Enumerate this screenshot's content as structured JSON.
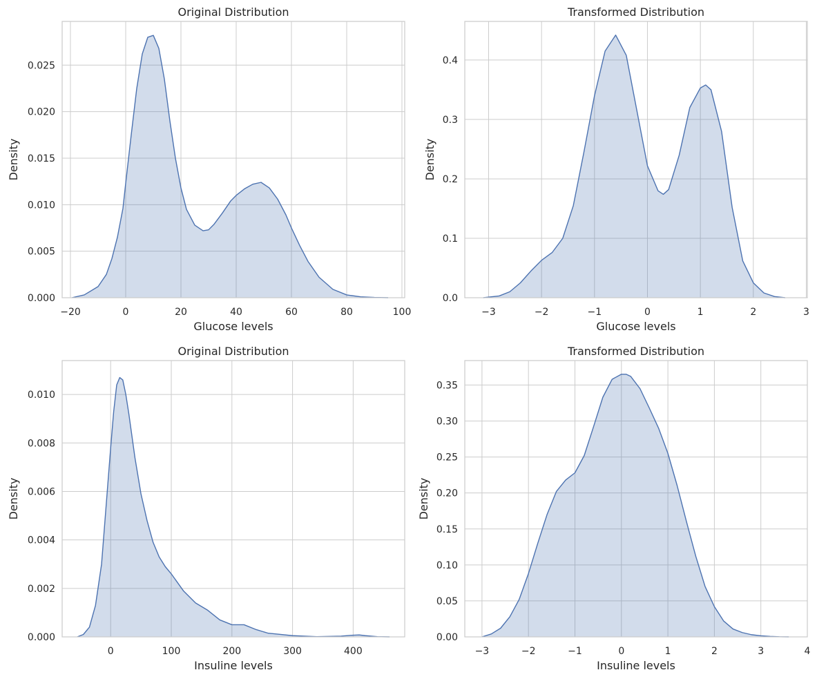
{
  "chart_data": [
    {
      "type": "area",
      "title": "Original Distribution",
      "xlabel": "Glucose levels",
      "ylabel": "Density",
      "xlim": [
        -23,
        101
      ],
      "ylim": [
        0,
        0.0297
      ],
      "xticks": [
        -20,
        0,
        20,
        40,
        60,
        80,
        100
      ],
      "xtick_labels": [
        "−20",
        "0",
        "20",
        "40",
        "60",
        "80",
        "100"
      ],
      "yticks": [
        0,
        0.005,
        0.01,
        0.015,
        0.02,
        0.025
      ],
      "ytick_labels": [
        "0.000",
        "0.005",
        "0.010",
        "0.015",
        "0.020",
        "0.025"
      ],
      "grid": true,
      "series": [
        {
          "x": [
            -19.5,
            -15,
            -10,
            -7,
            -5,
            -3,
            -1,
            0,
            2,
            4,
            6,
            8,
            10,
            12,
            14,
            16,
            18,
            20,
            22,
            25,
            28,
            30,
            32,
            35,
            38,
            40,
            43,
            46,
            49,
            52,
            55,
            58,
            60,
            63,
            66,
            70,
            75,
            80,
            85,
            90,
            95
          ],
          "y": [
            0,
            0.0003,
            0.0012,
            0.0025,
            0.0042,
            0.0065,
            0.0096,
            0.0123,
            0.0175,
            0.0225,
            0.0262,
            0.028,
            0.0282,
            0.0268,
            0.0235,
            0.019,
            0.015,
            0.0118,
            0.0095,
            0.0078,
            0.0072,
            0.0073,
            0.0079,
            0.0091,
            0.0104,
            0.011,
            0.0117,
            0.0122,
            0.0124,
            0.0118,
            0.0106,
            0.0089,
            0.0075,
            0.0056,
            0.0039,
            0.0022,
            0.0009,
            0.0003,
            0.0001,
            3e-05,
            0
          ]
        }
      ]
    },
    {
      "type": "area",
      "title": "Transformed Distribution",
      "xlabel": "Glucose levels",
      "ylabel": "Density",
      "xlim": [
        -3.45,
        3.02
      ],
      "ylim": [
        0,
        0.465
      ],
      "xticks": [
        -3,
        -2,
        -1,
        0,
        1,
        2,
        3
      ],
      "xtick_labels": [
        "−3",
        "−2",
        "−1",
        "0",
        "1",
        "2",
        "3"
      ],
      "yticks": [
        0,
        0.1,
        0.2,
        0.3,
        0.4
      ],
      "ytick_labels": [
        "0.0",
        "0.1",
        "0.2",
        "0.3",
        "0.4"
      ],
      "grid": true,
      "series": [
        {
          "x": [
            -3.1,
            -2.8,
            -2.6,
            -2.4,
            -2.2,
            -2.0,
            -1.8,
            -1.6,
            -1.4,
            -1.2,
            -1.0,
            -0.8,
            -0.6,
            -0.4,
            -0.2,
            0.0,
            0.2,
            0.3,
            0.4,
            0.6,
            0.8,
            1.0,
            1.1,
            1.2,
            1.4,
            1.6,
            1.8,
            2.0,
            2.2,
            2.4,
            2.6
          ],
          "y": [
            0,
            0.003,
            0.01,
            0.025,
            0.045,
            0.063,
            0.076,
            0.1,
            0.155,
            0.245,
            0.34,
            0.415,
            0.442,
            0.408,
            0.315,
            0.222,
            0.18,
            0.174,
            0.182,
            0.24,
            0.32,
            0.353,
            0.358,
            0.35,
            0.28,
            0.152,
            0.062,
            0.025,
            0.008,
            0.002,
            0
          ]
        }
      ]
    },
    {
      "type": "area",
      "title": "Original Distribution",
      "xlabel": "Insuline levels",
      "ylabel": "Density",
      "xlim": [
        -80,
        485
      ],
      "ylim": [
        0,
        0.0114
      ],
      "xticks": [
        0,
        100,
        200,
        300,
        400
      ],
      "xtick_labels": [
        "0",
        "100",
        "200",
        "300",
        "400"
      ],
      "yticks": [
        0,
        0.002,
        0.004,
        0.006,
        0.008,
        0.01
      ],
      "ytick_labels": [
        "0.000",
        "0.002",
        "0.004",
        "0.006",
        "0.008",
        "0.010"
      ],
      "grid": true,
      "series": [
        {
          "x": [
            -55,
            -45,
            -35,
            -25,
            -15,
            -5,
            0,
            5,
            10,
            15,
            20,
            25,
            30,
            35,
            40,
            50,
            60,
            70,
            80,
            90,
            100,
            120,
            140,
            160,
            180,
            200,
            220,
            240,
            260,
            280,
            300,
            340,
            380,
            400,
            410,
            420,
            440,
            460
          ],
          "y": [
            0,
            0.0001,
            0.0004,
            0.0013,
            0.003,
            0.0062,
            0.0078,
            0.0093,
            0.0104,
            0.0107,
            0.0106,
            0.01,
            0.0092,
            0.0083,
            0.0074,
            0.0059,
            0.0048,
            0.0039,
            0.0033,
            0.0029,
            0.0026,
            0.0019,
            0.0014,
            0.0011,
            0.0007,
            0.0005,
            0.0005,
            0.0003,
            0.00015,
            0.0001,
            5e-05,
            1e-05,
            3e-05,
            7e-05,
            8e-05,
            5e-05,
            1e-05,
            0
          ]
        }
      ]
    },
    {
      "type": "area",
      "title": "Transformed Distribution",
      "xlabel": "Insuline levels",
      "ylabel": "Density",
      "xlim": [
        -3.37,
        4.0
      ],
      "ylim": [
        0,
        0.384
      ],
      "xticks": [
        -3,
        -2,
        -1,
        0,
        1,
        2,
        3,
        4
      ],
      "xtick_labels": [
        "−3",
        "−2",
        "−1",
        "0",
        "1",
        "2",
        "3",
        "4"
      ],
      "yticks": [
        0,
        0.05,
        0.1,
        0.15,
        0.2,
        0.25,
        0.3,
        0.35
      ],
      "ytick_labels": [
        "0.00",
        "0.05",
        "0.10",
        "0.15",
        "0.20",
        "0.25",
        "0.30",
        "0.35"
      ],
      "grid": true,
      "series": [
        {
          "x": [
            -3.0,
            -2.8,
            -2.6,
            -2.4,
            -2.2,
            -2.0,
            -1.8,
            -1.6,
            -1.4,
            -1.2,
            -1.0,
            -0.8,
            -0.6,
            -0.4,
            -0.2,
            0.0,
            0.1,
            0.2,
            0.4,
            0.6,
            0.8,
            1.0,
            1.2,
            1.4,
            1.6,
            1.8,
            2.0,
            2.2,
            2.4,
            2.6,
            2.8,
            3.0,
            3.2,
            3.4,
            3.6
          ],
          "y": [
            0,
            0.004,
            0.012,
            0.028,
            0.052,
            0.088,
            0.13,
            0.17,
            0.202,
            0.218,
            0.228,
            0.252,
            0.292,
            0.333,
            0.358,
            0.365,
            0.365,
            0.362,
            0.345,
            0.318,
            0.29,
            0.255,
            0.21,
            0.16,
            0.112,
            0.07,
            0.042,
            0.022,
            0.011,
            0.006,
            0.003,
            0.0015,
            0.0007,
            0.0002,
            0
          ]
        }
      ]
    }
  ]
}
